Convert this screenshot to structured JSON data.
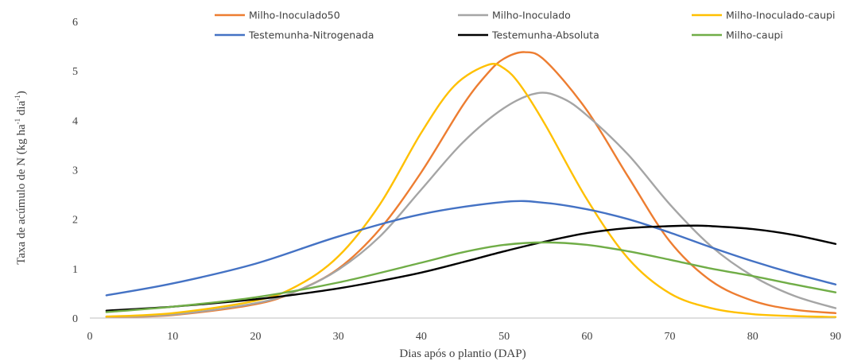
{
  "chart_data": {
    "type": "line",
    "xlabel": "Dias após o plantio (DAP)",
    "ylabel_main": "Taxa de acúmulo de N (kg ha",
    "ylabel_sup1": "-1",
    "ylabel_mid": " dia",
    "ylabel_sup2": "-1",
    "ylabel_end": ")",
    "xlim": [
      0,
      90
    ],
    "ylim": [
      0,
      6
    ],
    "xticks": [
      0,
      10,
      20,
      30,
      40,
      50,
      60,
      70,
      80,
      90
    ],
    "yticks": [
      0,
      1,
      2,
      3,
      4,
      5,
      6
    ],
    "grid": false,
    "legend_position": "top",
    "series": [
      {
        "name": "Milho-Inoculado50",
        "color": "#ED7D31",
        "x": [
          2,
          10,
          20,
          25,
          30,
          35,
          40,
          45,
          48,
          50,
          52.5,
          55,
          60,
          65,
          70,
          75,
          80,
          85,
          90
        ],
        "y": [
          0.02,
          0.06,
          0.28,
          0.55,
          1.0,
          1.8,
          2.95,
          4.3,
          4.95,
          5.25,
          5.38,
          5.2,
          4.2,
          2.85,
          1.55,
          0.75,
          0.35,
          0.17,
          0.1
        ]
      },
      {
        "name": "Milho-Inoculado",
        "color": "#A5A5A5",
        "x": [
          2,
          10,
          20,
          25,
          30,
          35,
          40,
          45,
          50,
          54,
          57,
          60,
          65,
          70,
          75,
          80,
          85,
          90
        ],
        "y": [
          0.03,
          0.07,
          0.3,
          0.55,
          0.98,
          1.65,
          2.6,
          3.55,
          4.25,
          4.55,
          4.45,
          4.1,
          3.3,
          2.3,
          1.45,
          0.85,
          0.45,
          0.2
        ]
      },
      {
        "name": "Milho-Inoculado-caupi",
        "color": "#FFC000",
        "x": [
          2,
          10,
          20,
          25,
          30,
          35,
          40,
          44,
          48,
          50,
          52,
          55,
          60,
          65,
          70,
          75,
          80,
          85,
          90
        ],
        "y": [
          0.03,
          0.1,
          0.35,
          0.65,
          1.25,
          2.3,
          3.75,
          4.7,
          5.12,
          5.05,
          4.7,
          3.9,
          2.4,
          1.2,
          0.5,
          0.2,
          0.08,
          0.04,
          0.02
        ]
      },
      {
        "name": "Testemunha-Nitrogenada",
        "color": "#4472C4",
        "x": [
          2,
          10,
          20,
          30,
          40,
          50,
          55,
          60,
          65,
          70,
          75,
          80,
          85,
          90
        ],
        "y": [
          0.46,
          0.7,
          1.1,
          1.65,
          2.1,
          2.35,
          2.33,
          2.2,
          2.0,
          1.73,
          1.43,
          1.15,
          0.9,
          0.68
        ]
      },
      {
        "name": "Testemunha-Absoluta",
        "color": "#000000",
        "x": [
          2,
          10,
          20,
          25,
          30,
          35,
          40,
          45,
          50,
          55,
          60,
          65,
          70,
          73,
          75,
          80,
          85,
          90
        ],
        "y": [
          0.15,
          0.23,
          0.38,
          0.48,
          0.6,
          0.75,
          0.92,
          1.13,
          1.35,
          1.55,
          1.72,
          1.82,
          1.86,
          1.87,
          1.86,
          1.8,
          1.68,
          1.5
        ]
      },
      {
        "name": "Milho-caupi",
        "color": "#70AD47",
        "x": [
          2,
          10,
          20,
          30,
          40,
          45,
          50,
          55,
          60,
          65,
          70,
          75,
          80,
          85,
          90
        ],
        "y": [
          0.12,
          0.23,
          0.42,
          0.72,
          1.12,
          1.33,
          1.48,
          1.53,
          1.48,
          1.35,
          1.18,
          1.0,
          0.85,
          0.68,
          0.52
        ]
      }
    ]
  }
}
